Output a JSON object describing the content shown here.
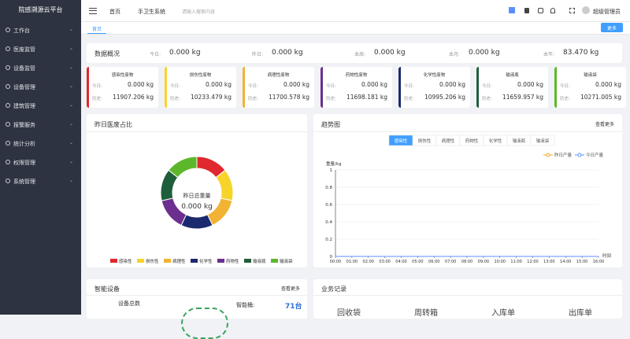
{
  "sidebar": {
    "title": "院感溯源云平台",
    "menu": [
      "工作台",
      "医废监管",
      "设备监管",
      "设备管理",
      "建筑管理",
      "报警服务",
      "统计分析",
      "权限管理",
      "系统管理"
    ]
  },
  "topbar": {
    "breadcrumb": [
      "首页",
      "手卫生系统"
    ],
    "search_placeholder": "请输入搜索内容",
    "user": "超级管理员"
  },
  "tabs": {
    "active": "首页",
    "more": "更多"
  },
  "overview": {
    "title": "数据概况",
    "items": [
      {
        "label": "今日:",
        "value": "0.000 kg"
      },
      {
        "label": "昨日:",
        "value": "0.000 kg"
      },
      {
        "label": "本周:",
        "value": "0.000 kg"
      },
      {
        "label": "本月:",
        "value": "0.000 kg"
      },
      {
        "label": "本年:",
        "value": "83.470 kg"
      }
    ]
  },
  "waste_cards": [
    {
      "name": "感染性废物",
      "color": "#e0282e",
      "today_label": "今日:",
      "today": "0.000 kg",
      "history_label": "历史:",
      "history": "11907.206 kg"
    },
    {
      "name": "损伤性废物",
      "color": "#f7d42a",
      "today_label": "今日:",
      "today": "0.000 kg",
      "history_label": "历史:",
      "history": "10233.479 kg"
    },
    {
      "name": "病理性废物",
      "color": "#f2b233",
      "today_label": "今日:",
      "today": "0.000 kg",
      "history_label": "历史:",
      "history": "11700.578 kg"
    },
    {
      "name": "药物性废物",
      "color": "#6c2f8f",
      "today_label": "今日:",
      "today": "0.000 kg",
      "history_label": "历史:",
      "history": "11698.181 kg"
    },
    {
      "name": "化学性废物",
      "color": "#1b2a6e",
      "today_label": "今日:",
      "today": "0.000 kg",
      "history_label": "历史:",
      "history": "10995.206 kg"
    },
    {
      "name": "输液瓶",
      "color": "#1f5e3a",
      "today_label": "今日:",
      "today": "0.000 kg",
      "history_label": "历史:",
      "history": "11659.957 kg"
    },
    {
      "name": "输液袋",
      "color": "#5cb82a",
      "today_label": "今日:",
      "today": "0.000 kg",
      "history_label": "历史:",
      "history": "10271.005 kg"
    }
  ],
  "chart_data": [
    {
      "type": "pie",
      "title": "昨日医废占比",
      "center_label": "昨日总重量",
      "center_value": "0.000 kg",
      "categories": [
        "感染性",
        "损伤性",
        "病理性",
        "化学性",
        "药物性",
        "输液瓶",
        "输液袋"
      ],
      "colors": [
        "#e0282e",
        "#f7d42a",
        "#f2b233",
        "#1b2a6e",
        "#6c2f8f",
        "#1f5e3a",
        "#5cb82a"
      ],
      "values": [
        0,
        0,
        0,
        0,
        0,
        0,
        0
      ]
    },
    {
      "type": "line",
      "title": "趋势图",
      "more": "查看更多",
      "filters": [
        "感染性",
        "损伤性",
        "病理性",
        "药物性",
        "化学性",
        "输液瓶",
        "输液袋"
      ],
      "active_filter": 0,
      "y_label": "重量/kg",
      "x_label": "时间",
      "categories": [
        "00:00",
        "01:00",
        "02:00",
        "03:00",
        "04:00",
        "05:00",
        "06:00",
        "07:00",
        "08:00",
        "09:00",
        "10:00",
        "11:00",
        "12:00",
        "13:00",
        "14:00",
        "15:00",
        "16:00"
      ],
      "ylim": [
        0,
        1
      ],
      "yticks": [
        0,
        0.2,
        0.4,
        0.6,
        0.8,
        1
      ],
      "grid": true,
      "series": [
        {
          "name": "昨日产量",
          "color": "#f5a623",
          "values": [
            0,
            0,
            0,
            0,
            0,
            0,
            0,
            0,
            0,
            0,
            0,
            0,
            0,
            0,
            0,
            0,
            0
          ]
        },
        {
          "name": "今日产量",
          "color": "#5b8ff9",
          "values": [
            0,
            0,
            0,
            0,
            0,
            0,
            0,
            0,
            0,
            0,
            0,
            0,
            0,
            0,
            0,
            0,
            0
          ]
        }
      ]
    }
  ],
  "devices": {
    "title": "智能设备",
    "more": "查看更多",
    "total_label": "设备总数",
    "bucket_label": "智能桶:",
    "bucket_value": "71台"
  },
  "records": {
    "title": "业务记录",
    "items": [
      "回收袋",
      "周转箱",
      "入库单",
      "出库单"
    ]
  }
}
